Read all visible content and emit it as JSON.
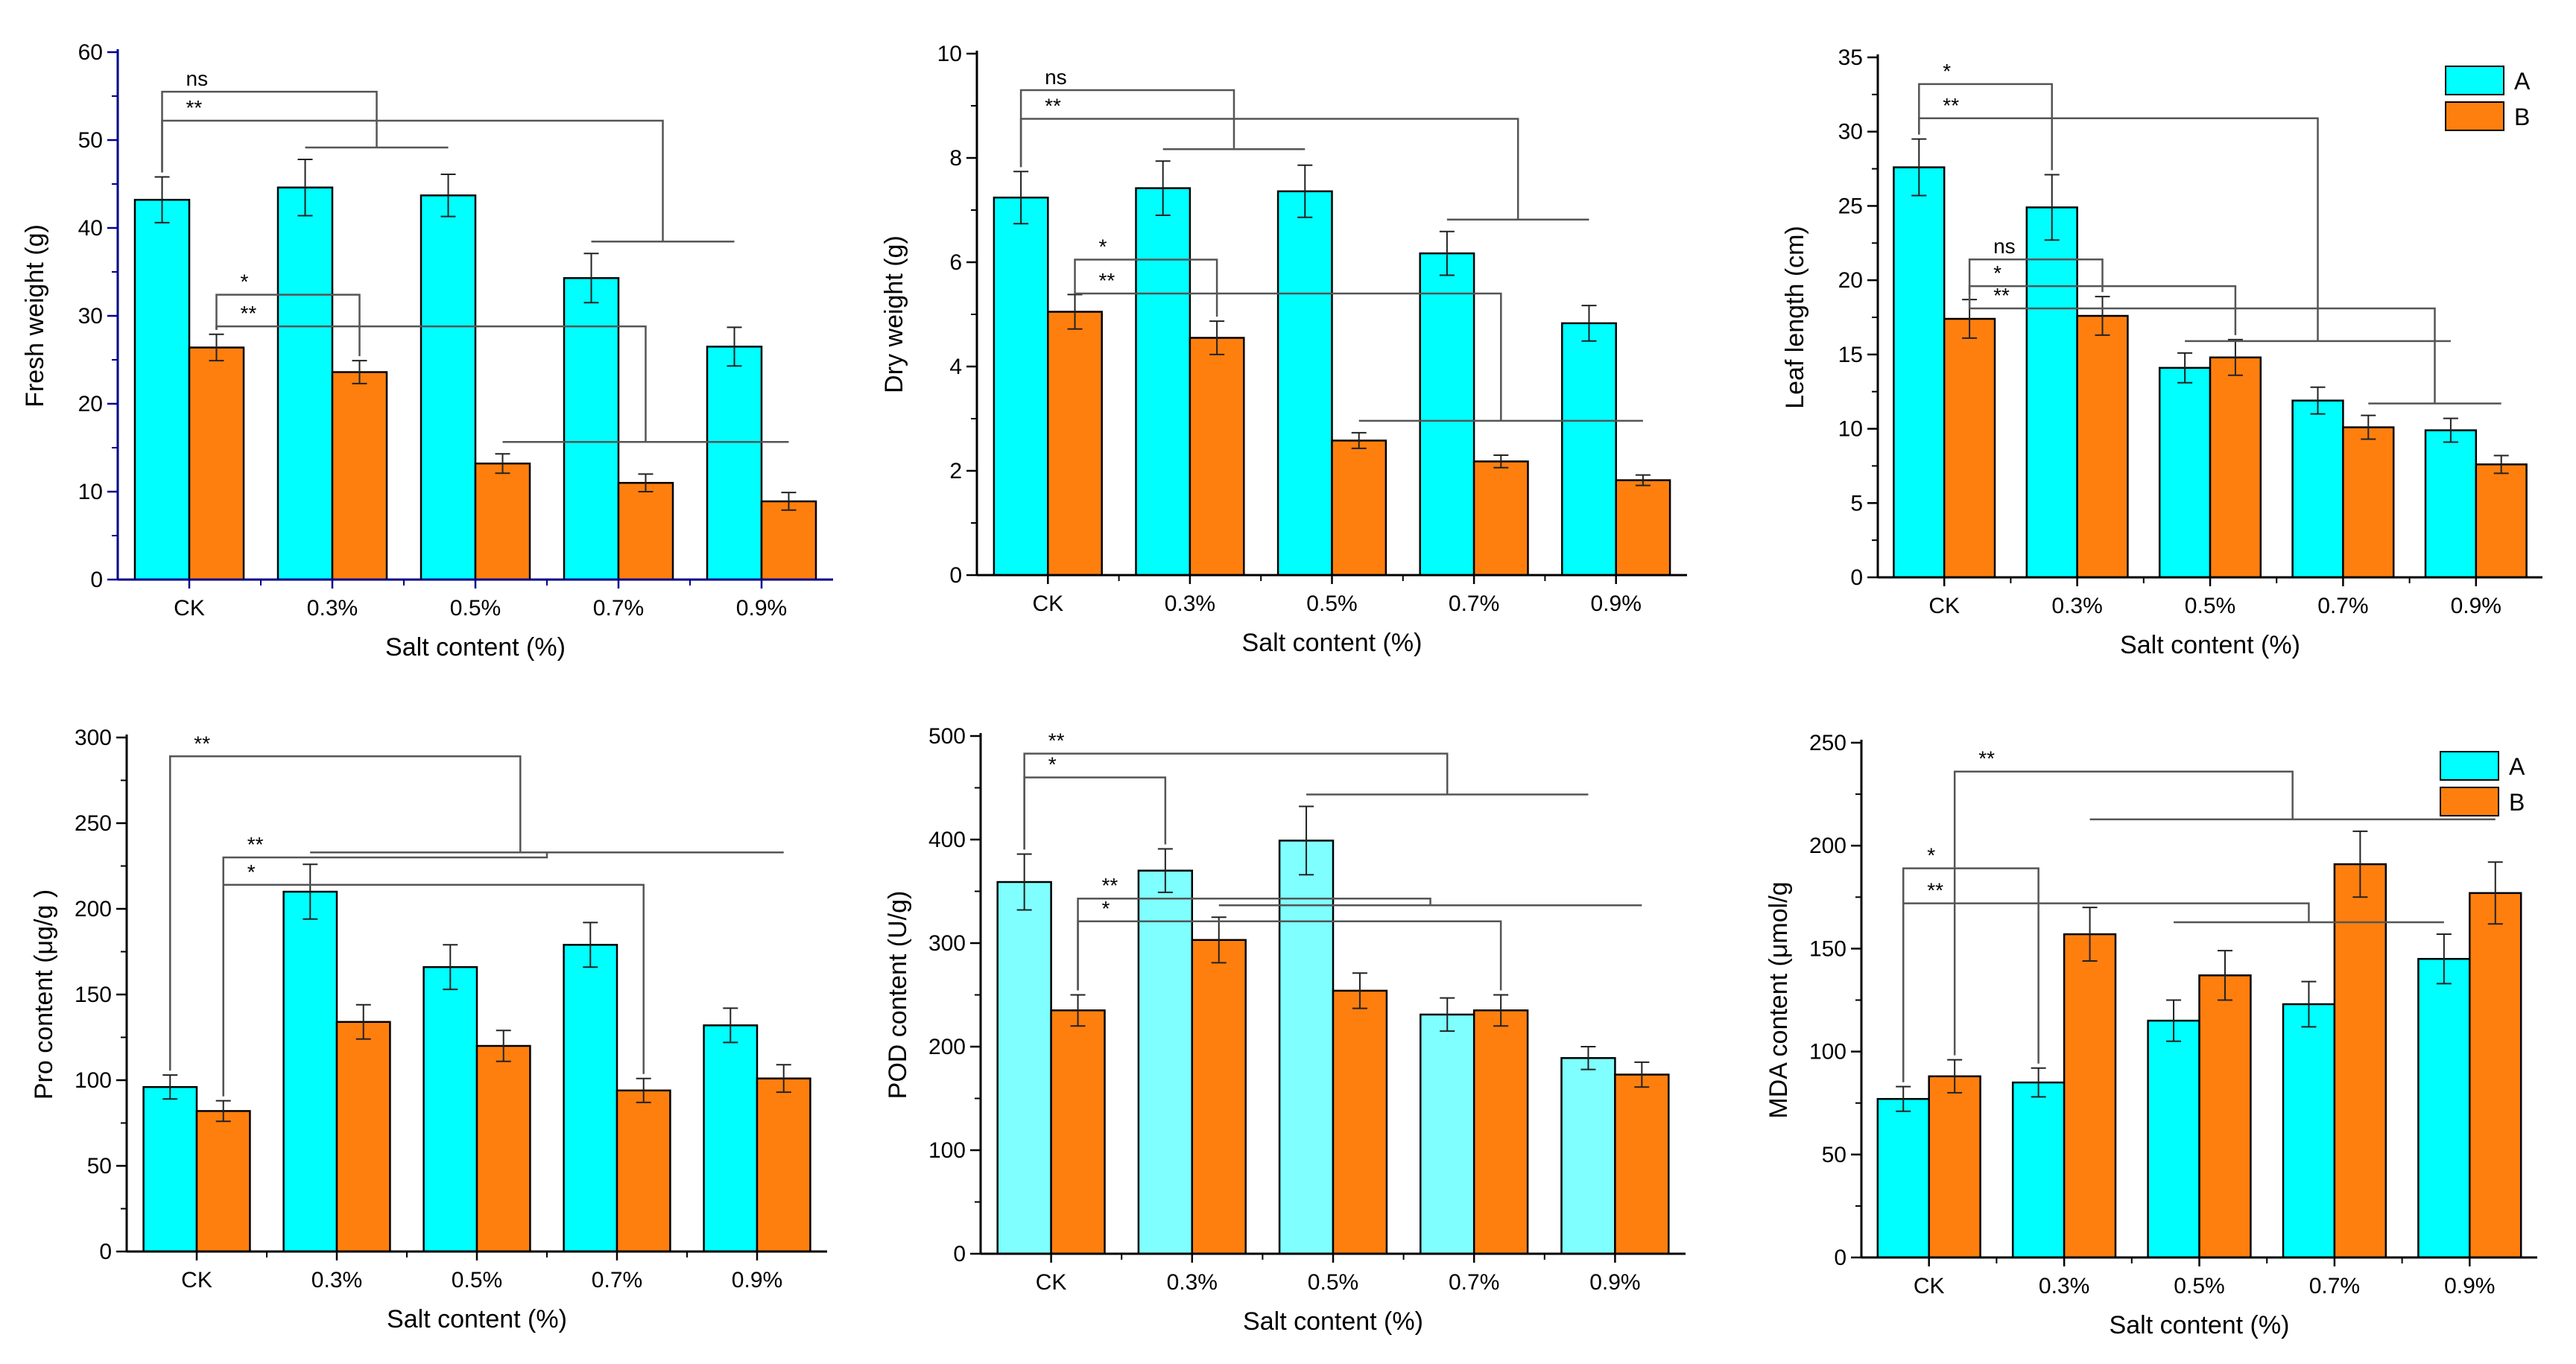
{
  "colors": {
    "A": "#00ffff",
    "A_light": "#7fffff",
    "B": "#ff7f0e",
    "axis_blue": "#00008b",
    "bracket": "#555555"
  },
  "chart_data": [
    {
      "id": "fresh-weight",
      "type": "bar",
      "categories": [
        "CK",
        "0.3%",
        "0.5%",
        "0.7%",
        "0.9%"
      ],
      "series": [
        {
          "name": "A",
          "values": [
            43.2,
            44.6,
            43.7,
            34.3,
            26.5
          ],
          "errors": [
            2.6,
            3.2,
            2.4,
            2.8,
            2.2
          ]
        },
        {
          "name": "B",
          "values": [
            26.4,
            23.6,
            13.2,
            11.0,
            8.9
          ],
          "errors": [
            1.5,
            1.3,
            1.1,
            1.0,
            1.0
          ]
        }
      ],
      "xlabel": "Salt content (%)",
      "ylabel": "Fresh weight (g)",
      "ylim": [
        0,
        60
      ],
      "yticks": [
        0,
        10,
        20,
        30,
        40,
        50,
        60
      ],
      "legend": "none",
      "brackets": [
        {
          "label": "ns",
          "y": 55.5,
          "from": [
            0,
            "A"
          ],
          "to": [
            [
              1,
              "A"
            ],
            [
              2,
              "A"
            ]
          ]
        },
        {
          "label": "**",
          "y": 52.2,
          "from": [
            0,
            "A"
          ],
          "to": [
            [
              3,
              "A"
            ],
            [
              4,
              "A"
            ]
          ]
        },
        {
          "label": "*",
          "y": 32.4,
          "from": [
            0,
            "B"
          ],
          "to": [
            [
              1,
              "B"
            ]
          ]
        },
        {
          "label": "**",
          "y": 28.8,
          "from": [
            0,
            "B"
          ],
          "to": [
            [
              2,
              "B"
            ],
            [
              3,
              "B"
            ],
            [
              4,
              "B"
            ]
          ]
        }
      ]
    },
    {
      "id": "dry-weight",
      "type": "bar",
      "categories": [
        "CK",
        "0.3%",
        "0.5%",
        "0.7%",
        "0.9%"
      ],
      "series": [
        {
          "name": "A",
          "values": [
            7.24,
            7.42,
            7.36,
            6.17,
            4.83
          ],
          "errors": [
            0.5,
            0.52,
            0.5,
            0.42,
            0.34
          ]
        },
        {
          "name": "B",
          "values": [
            5.05,
            4.55,
            2.58,
            2.18,
            1.82
          ],
          "errors": [
            0.33,
            0.32,
            0.15,
            0.12,
            0.1
          ]
        }
      ],
      "xlabel": "Salt content (%)",
      "ylabel": "Dry weight (g)",
      "ylim": [
        0,
        10
      ],
      "yticks": [
        0,
        2,
        4,
        6,
        8,
        10
      ],
      "legend": "none",
      "brackets": [
        {
          "label": "ns",
          "y": 9.3,
          "from": [
            0,
            "A"
          ],
          "to": [
            [
              1,
              "A"
            ],
            [
              2,
              "A"
            ]
          ]
        },
        {
          "label": "**",
          "y": 8.75,
          "from": [
            0,
            "A"
          ],
          "to": [
            [
              3,
              "A"
            ],
            [
              4,
              "A"
            ]
          ]
        },
        {
          "label": "*",
          "y": 6.05,
          "from": [
            0,
            "B"
          ],
          "to": [
            [
              1,
              "B"
            ]
          ]
        },
        {
          "label": "**",
          "y": 5.4,
          "from": [
            0,
            "B"
          ],
          "to": [
            [
              2,
              "B"
            ],
            [
              3,
              "B"
            ],
            [
              4,
              "B"
            ]
          ]
        }
      ]
    },
    {
      "id": "leaf-length",
      "type": "bar",
      "categories": [
        "CK",
        "0.3%",
        "0.5%",
        "0.7%",
        "0.9%"
      ],
      "series": [
        {
          "name": "A",
          "values": [
            27.6,
            24.9,
            14.1,
            11.9,
            9.9
          ],
          "errors": [
            1.9,
            2.2,
            1.0,
            0.9,
            0.8
          ]
        },
        {
          "name": "B",
          "values": [
            17.4,
            17.6,
            14.8,
            10.1,
            7.6
          ],
          "errors": [
            1.3,
            1.3,
            1.2,
            0.8,
            0.6
          ]
        }
      ],
      "xlabel": "Salt content (%)",
      "ylabel": "Leaf length (cm)",
      "ylim": [
        0,
        35
      ],
      "yticks": [
        0,
        5,
        10,
        15,
        20,
        25,
        30,
        35
      ],
      "legend": "top-right",
      "brackets": [
        {
          "label": "*",
          "y": 33.2,
          "from": [
            0,
            "A"
          ],
          "to": [
            [
              1,
              "A"
            ]
          ]
        },
        {
          "label": "**",
          "y": 30.9,
          "from": [
            0,
            "A"
          ],
          "to": [
            [
              2,
              "A"
            ],
            [
              3,
              "A"
            ],
            [
              4,
              "A"
            ]
          ]
        },
        {
          "label": "ns",
          "y": 21.4,
          "from": [
            0,
            "B"
          ],
          "to": [
            [
              1,
              "B"
            ]
          ]
        },
        {
          "label": "*",
          "y": 19.6,
          "from": [
            0,
            "B"
          ],
          "to": [
            [
              2,
              "B"
            ]
          ]
        },
        {
          "label": "**",
          "y": 18.1,
          "from": [
            0,
            "B"
          ],
          "to": [
            [
              3,
              "B"
            ],
            [
              4,
              "B"
            ]
          ]
        }
      ]
    },
    {
      "id": "pro-content",
      "type": "bar",
      "categories": [
        "CK",
        "0.3%",
        "0.5%",
        "0.7%",
        "0.9%"
      ],
      "series": [
        {
          "name": "A",
          "values": [
            96,
            210,
            166,
            179,
            132
          ],
          "errors": [
            7,
            16,
            13,
            13,
            10
          ]
        },
        {
          "name": "B",
          "values": [
            82,
            134,
            120,
            94,
            101
          ],
          "errors": [
            6,
            10,
            9,
            7,
            8
          ]
        }
      ],
      "xlabel": "Salt content (%)",
      "ylabel": "Pro content (μg/g )",
      "ylim": [
        0,
        300
      ],
      "yticks": [
        0,
        50,
        100,
        150,
        200,
        250,
        300
      ],
      "legend": "none",
      "brackets": [
        {
          "label": "**",
          "y": 289,
          "from": [
            0,
            "A"
          ],
          "to": [
            [
              1,
              "A"
            ],
            [
              2,
              "A"
            ],
            [
              3,
              "A"
            ],
            [
              4,
              "A"
            ]
          ]
        },
        {
          "label": "**",
          "y": 230,
          "from": [
            0,
            "B"
          ],
          "to": [
            [
              1,
              "A"
            ],
            [
              2,
              "A"
            ],
            [
              4,
              "B"
            ]
          ]
        },
        {
          "label": "*",
          "y": 214,
          "from": [
            0,
            "B"
          ],
          "to": [
            [
              3,
              "B"
            ]
          ]
        }
      ]
    },
    {
      "id": "pod-content",
      "type": "bar",
      "categories": [
        "CK",
        "0.3%",
        "0.5%",
        "0.7%",
        "0.9%"
      ],
      "series": [
        {
          "name": "A",
          "values": [
            359,
            370,
            399,
            231,
            189
          ],
          "errors": [
            27,
            21,
            33,
            16,
            11
          ]
        },
        {
          "name": "B",
          "values": [
            235,
            303,
            254,
            235,
            173
          ],
          "errors": [
            15,
            22,
            17,
            15,
            12
          ]
        }
      ],
      "xlabel": "Salt content (%)",
      "ylabel": "POD content (U/g)",
      "ylim": [
        0,
        500
      ],
      "yticks": [
        0,
        100,
        200,
        300,
        400,
        500
      ],
      "legend": "none",
      "brackets": [
        {
          "label": "**",
          "y": 483,
          "from": [
            0,
            "A"
          ],
          "to": [
            [
              2,
              "A"
            ],
            [
              3,
              "A"
            ],
            [
              4,
              "A"
            ]
          ]
        },
        {
          "label": "*",
          "y": 460,
          "from": [
            0,
            "A"
          ],
          "to": [
            [
              1,
              "A"
            ]
          ]
        },
        {
          "label": "**",
          "y": 343,
          "from": [
            0,
            "B"
          ],
          "to": [
            [
              1,
              "B"
            ],
            [
              2,
              "B"
            ],
            [
              4,
              "B"
            ]
          ]
        },
        {
          "label": "*",
          "y": 321,
          "from": [
            0,
            "B"
          ],
          "to": [
            [
              3,
              "B"
            ]
          ]
        }
      ]
    },
    {
      "id": "mda-content",
      "type": "bar",
      "categories": [
        "CK",
        "0.3%",
        "0.5%",
        "0.7%",
        "0.9%"
      ],
      "series": [
        {
          "name": "A",
          "values": [
            77,
            85,
            115,
            123,
            145
          ],
          "errors": [
            6,
            7,
            10,
            11,
            12
          ]
        },
        {
          "name": "B",
          "values": [
            88,
            157,
            137,
            191,
            177
          ],
          "errors": [
            8,
            13,
            12,
            16,
            15
          ]
        }
      ],
      "xlabel": "Salt content (%)",
      "ylabel": "MDA content (μmol/g",
      "ylim": [
        0,
        250
      ],
      "yticks": [
        0,
        50,
        100,
        150,
        200,
        250
      ],
      "legend": "top-right",
      "brackets": [
        {
          "label": "**",
          "y": 236,
          "from": [
            0,
            "B"
          ],
          "to": [
            [
              1,
              "B"
            ],
            [
              2,
              "B"
            ],
            [
              3,
              "B"
            ],
            [
              4,
              "B"
            ]
          ]
        },
        {
          "label": "*",
          "y": 189,
          "from": [
            0,
            "A"
          ],
          "to": [
            [
              1,
              "A"
            ]
          ]
        },
        {
          "label": "**",
          "y": 172,
          "from": [
            0,
            "A"
          ],
          "to": [
            [
              2,
              "A"
            ],
            [
              3,
              "A"
            ],
            [
              4,
              "A"
            ]
          ]
        }
      ]
    }
  ]
}
